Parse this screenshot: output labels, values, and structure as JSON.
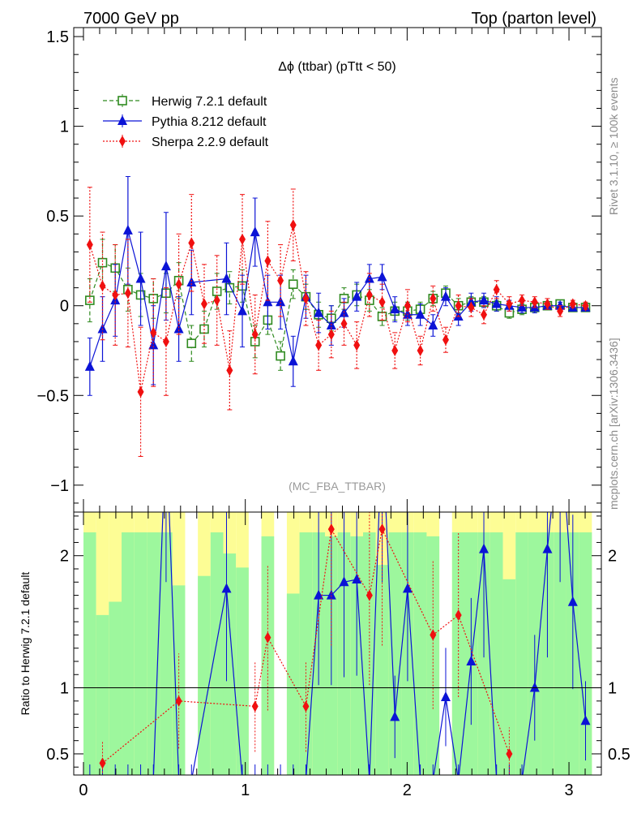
{
  "header": {
    "left": "7000 GeV pp",
    "right": "Top (parton level)"
  },
  "plot_title": "Δϕ (ttbar) (pTtt < 50)",
  "watermark": "(MC_FBA_TTBAR)",
  "side_text_top": "Rivet 3.1.10, ≥ 100k events",
  "side_text_bottom": "mcplots.cern.ch [arXiv:1306.3436]",
  "colors": {
    "herwig": "#2f8a1f",
    "pythia": "#0b13d6",
    "sherpa": "#f01010",
    "band_green": "#9df79d",
    "band_yellow": "#fdfd95"
  },
  "chart_data": [
    {
      "type": "scatter",
      "panel": "main",
      "title": "Δϕ (ttbar) (pTtt < 50)",
      "xlim": [
        -0.06,
        3.2
      ],
      "ylim": [
        -1.15,
        1.55
      ],
      "yticks": [
        -1,
        -0.5,
        0,
        0.5,
        1,
        1.5
      ],
      "ytick_labels": [
        "−1",
        "−0.5",
        "0",
        "0.5",
        "1",
        "1.5"
      ],
      "legend_placement": "top-left",
      "series": [
        {
          "name": "Herwig 7.2.1 default",
          "x": [
            0.0393,
            0.1178,
            0.1963,
            0.2749,
            0.3534,
            0.432,
            0.5105,
            0.589,
            0.6676,
            0.7461,
            0.8247,
            0.9032,
            0.9817,
            1.0603,
            1.1388,
            1.2174,
            1.2959,
            1.3744,
            1.453,
            1.5315,
            1.6101,
            1.6886,
            1.7671,
            1.8457,
            1.9242,
            2.0028,
            2.0813,
            2.1598,
            2.2384,
            2.3169,
            2.3955,
            2.474,
            2.5525,
            2.6311,
            2.7096,
            2.7882,
            2.8667,
            2.9452,
            3.0238,
            3.1023
          ],
          "y": [
            0.03,
            0.24,
            0.21,
            0.09,
            0.06,
            0.04,
            0.07,
            0.14,
            -0.21,
            -0.13,
            0.08,
            0.1,
            0.11,
            -0.2,
            -0.08,
            -0.28,
            0.12,
            0.05,
            -0.05,
            -0.07,
            0.04,
            0.06,
            0.03,
            -0.06,
            -0.03,
            -0.03,
            -0.02,
            0.04,
            0.07,
            0.0,
            0.02,
            0.02,
            0.0,
            -0.04,
            -0.02,
            -0.01,
            0.0,
            0.01,
            -0.01,
            -0.01
          ],
          "err": [
            0.12,
            0.13,
            0.13,
            0.12,
            0.12,
            0.11,
            0.11,
            0.1,
            0.1,
            0.1,
            0.1,
            0.09,
            0.09,
            0.09,
            0.08,
            0.08,
            0.08,
            0.07,
            0.07,
            0.07,
            0.06,
            0.06,
            0.06,
            0.05,
            0.05,
            0.05,
            0.04,
            0.04,
            0.04,
            0.04,
            0.03,
            0.03,
            0.03,
            0.03,
            0.03,
            0.02,
            0.02,
            0.02,
            0.02,
            0.02
          ]
        },
        {
          "name": "Pythia 8.212 default",
          "x": [
            0.0393,
            0.1178,
            0.1963,
            0.2749,
            0.3534,
            0.432,
            0.5105,
            0.589,
            0.6676,
            0.8839,
            0.9817,
            1.0603,
            1.1388,
            1.2174,
            1.2959,
            1.3744,
            1.453,
            1.5315,
            1.6101,
            1.6886,
            1.7671,
            1.8457,
            1.9242,
            2.0028,
            2.0813,
            2.1598,
            2.2384,
            2.3169,
            2.3955,
            2.474,
            2.5525,
            2.6311,
            2.7096,
            2.7882,
            2.8667,
            2.9452,
            3.0238,
            3.1023
          ],
          "y": [
            -0.34,
            -0.13,
            0.03,
            0.42,
            0.15,
            -0.22,
            0.22,
            -0.13,
            0.13,
            0.15,
            -0.03,
            0.41,
            0.02,
            0.02,
            -0.31,
            0.05,
            -0.04,
            -0.11,
            -0.04,
            0.05,
            0.15,
            0.16,
            -0.02,
            -0.05,
            -0.05,
            -0.11,
            0.05,
            -0.06,
            0.02,
            0.03,
            0.01,
            0.0,
            -0.01,
            -0.01,
            0.0,
            0.0,
            -0.01,
            -0.01
          ],
          "err": [
            0.16,
            0.18,
            0.2,
            0.3,
            0.26,
            0.22,
            0.3,
            0.18,
            0.18,
            0.2,
            0.2,
            0.19,
            0.15,
            0.15,
            0.14,
            0.12,
            0.11,
            0.11,
            0.08,
            0.08,
            0.08,
            0.07,
            0.07,
            0.06,
            0.06,
            0.06,
            0.05,
            0.05,
            0.05,
            0.04,
            0.04,
            0.03,
            0.03,
            0.03,
            0.02,
            0.02,
            0.02,
            0.02
          ]
        },
        {
          "name": "Sherpa 2.2.9 default",
          "x": [
            0.0393,
            0.1178,
            0.1963,
            0.2749,
            0.3534,
            0.432,
            0.5105,
            0.589,
            0.6676,
            0.7461,
            0.8247,
            0.9032,
            0.9817,
            1.0603,
            1.1388,
            1.2174,
            1.2959,
            1.3744,
            1.453,
            1.5315,
            1.6101,
            1.6886,
            1.7671,
            1.8457,
            1.9242,
            2.0028,
            2.0813,
            2.1598,
            2.2384,
            2.3169,
            2.3955,
            2.474,
            2.5525,
            2.6311,
            2.7096,
            2.7882,
            2.8667,
            2.9452,
            3.0238,
            3.1023
          ],
          "y": [
            0.34,
            0.11,
            0.06,
            0.07,
            -0.48,
            -0.15,
            -0.2,
            0.12,
            0.35,
            0.01,
            0.03,
            -0.36,
            0.37,
            -0.16,
            0.25,
            0.14,
            0.45,
            0.04,
            -0.22,
            -0.16,
            -0.1,
            -0.22,
            0.06,
            0.02,
            -0.25,
            0.0,
            -0.25,
            0.04,
            -0.19,
            0.0,
            -0.01,
            -0.05,
            0.09,
            0.01,
            0.03,
            0.02,
            0.01,
            -0.03,
            0.01,
            0.0
          ],
          "err": [
            0.32,
            0.3,
            0.28,
            0.3,
            0.36,
            0.3,
            0.3,
            0.28,
            0.27,
            0.22,
            0.25,
            0.22,
            0.25,
            0.22,
            0.22,
            0.2,
            0.2,
            0.15,
            0.14,
            0.13,
            0.12,
            0.13,
            0.12,
            0.1,
            0.1,
            0.09,
            0.08,
            0.07,
            0.07,
            0.06,
            0.05,
            0.05,
            0.05,
            0.04,
            0.03,
            0.03,
            0.03,
            0.03,
            0.02,
            0.02
          ]
        }
      ]
    },
    {
      "type": "line",
      "panel": "ratio",
      "ylabel": "Ratio to Herwig 7.2.1 default",
      "xlim": [
        -0.06,
        3.2
      ],
      "ylim": [
        0.34,
        2.33
      ],
      "xticks": [
        0,
        1,
        2,
        3
      ],
      "xtick_labels": [
        "0",
        "1",
        "2",
        "3"
      ],
      "yticks": [
        0.5,
        1,
        2
      ],
      "ytick_labels": [
        "0.5",
        "1",
        "2"
      ],
      "series": [
        {
          "name": "Pythia 8.212 default",
          "x": [
            0.0393,
            0.1178,
            0.1963,
            0.2749,
            0.3534,
            0.432,
            0.5105,
            0.589,
            0.6676,
            0.8839,
            0.9817,
            1.0603,
            1.1388,
            1.2174,
            1.2959,
            1.3744,
            1.453,
            1.5315,
            1.6101,
            1.6886,
            1.7671,
            1.8457,
            1.9242,
            2.0028,
            2.0813,
            2.1598,
            2.2384,
            2.3169,
            2.3955,
            2.474,
            2.5525,
            2.6311,
            2.7096,
            2.7882,
            2.8667,
            2.9452,
            3.0238,
            3.1023
          ],
          "y": [
            0.3,
            0.3,
            0.3,
            0.3,
            0.3,
            0.3,
            3.0,
            0.3,
            0.3,
            1.75,
            0.3,
            0.3,
            0.3,
            0.3,
            0.3,
            0.3,
            1.7,
            1.7,
            1.8,
            1.82,
            0.3,
            3.0,
            0.78,
            1.75,
            0.3,
            0.3,
            0.93,
            0.3,
            1.2,
            2.05,
            0.3,
            0.3,
            0.3,
            1.0,
            2.05,
            3.0,
            1.65,
            0.75
          ]
        },
        {
          "name": "Sherpa 2.2.9 default",
          "x": [
            0.1178,
            0.589,
            1.0603,
            1.1388,
            1.3744,
            1.5315,
            1.7671,
            1.8457,
            2.1598,
            2.3169,
            2.6311
          ],
          "y": [
            0.43,
            0.9,
            0.86,
            1.38,
            0.86,
            2.2,
            1.7,
            2.2,
            1.4,
            1.55,
            0.5
          ]
        }
      ]
    }
  ]
}
